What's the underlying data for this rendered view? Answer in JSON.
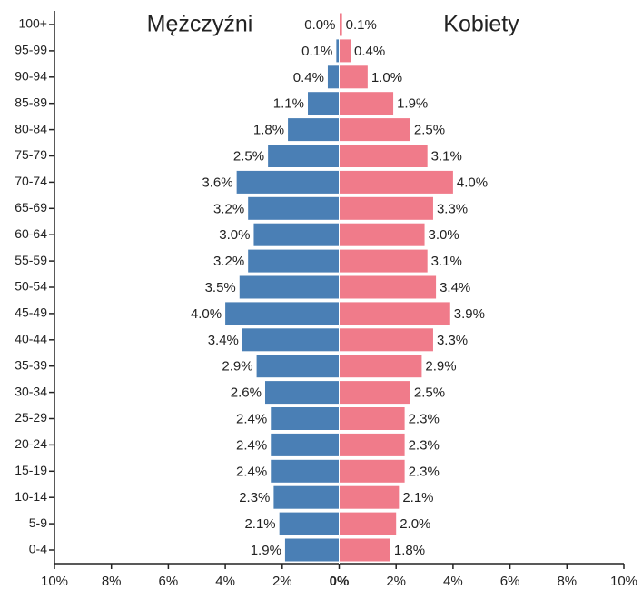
{
  "chart_data": {
    "type": "pyramid",
    "categories": [
      "100+",
      "95-99",
      "90-94",
      "85-89",
      "80-84",
      "75-79",
      "70-74",
      "65-69",
      "60-64",
      "55-59",
      "50-54",
      "45-49",
      "40-44",
      "35-39",
      "30-34",
      "25-29",
      "20-24",
      "15-19",
      "10-14",
      "5-9",
      "0-4"
    ],
    "series": [
      {
        "name": "Mężczyźni",
        "color": "#4a7fb5",
        "side": "left",
        "values": [
          0.0,
          0.1,
          0.4,
          1.1,
          1.8,
          2.5,
          3.6,
          3.2,
          3.0,
          3.2,
          3.5,
          4.0,
          3.4,
          2.9,
          2.6,
          2.4,
          2.4,
          2.4,
          2.3,
          2.1,
          1.9
        ],
        "value_labels": [
          "0.0%",
          "0.1%",
          "0.4%",
          "1.1%",
          "1.8%",
          "2.5%",
          "3.6%",
          "3.2%",
          "3.0%",
          "3.2%",
          "3.5%",
          "4.0%",
          "3.4%",
          "2.9%",
          "2.6%",
          "2.4%",
          "2.4%",
          "2.4%",
          "2.3%",
          "2.1%",
          "1.9%"
        ]
      },
      {
        "name": "Kobiety",
        "color": "#f07b8a",
        "side": "right",
        "values": [
          0.1,
          0.4,
          1.0,
          1.9,
          2.5,
          3.1,
          4.0,
          3.3,
          3.0,
          3.1,
          3.4,
          3.9,
          3.3,
          2.9,
          2.5,
          2.3,
          2.3,
          2.3,
          2.1,
          2.0,
          1.8
        ],
        "value_labels": [
          "0.1%",
          "0.4%",
          "1.0%",
          "1.9%",
          "2.5%",
          "3.1%",
          "4.0%",
          "3.3%",
          "3.0%",
          "3.1%",
          "3.4%",
          "3.9%",
          "3.3%",
          "2.9%",
          "2.5%",
          "2.3%",
          "2.3%",
          "2.3%",
          "2.1%",
          "2.0%",
          "1.8%"
        ]
      }
    ],
    "xlim": [
      -10,
      10
    ],
    "xticks": [
      {
        "value": -10,
        "label": "10%"
      },
      {
        "value": -8,
        "label": "8%"
      },
      {
        "value": -6,
        "label": "6%"
      },
      {
        "value": -4,
        "label": "4%"
      },
      {
        "value": -2,
        "label": "2%"
      },
      {
        "value": 0,
        "label": "0%"
      },
      {
        "value": 2,
        "label": "2%"
      },
      {
        "value": 4,
        "label": "4%"
      },
      {
        "value": 6,
        "label": "6%"
      },
      {
        "value": 8,
        "label": "8%"
      },
      {
        "value": 10,
        "label": "10%"
      }
    ]
  }
}
